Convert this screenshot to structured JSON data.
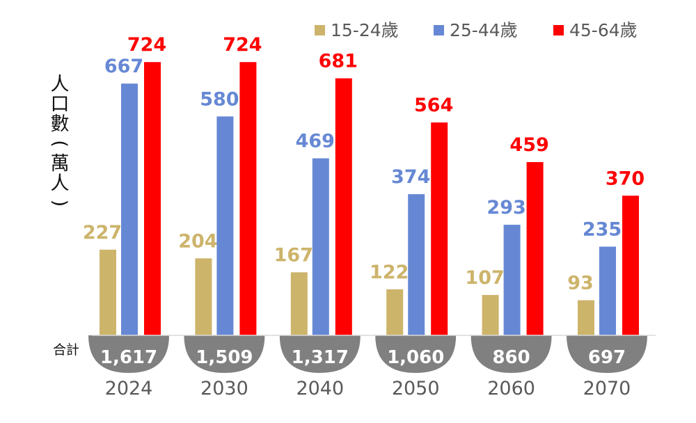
{
  "chart_data": {
    "type": "bar",
    "categories": [
      "2024",
      "2030",
      "2040",
      "2050",
      "2060",
      "2070"
    ],
    "series": [
      {
        "name": "15-24歲",
        "color": "#CDB46B",
        "values": [
          227,
          204,
          167,
          122,
          107,
          93
        ]
      },
      {
        "name": "25-44歲",
        "color": "#6688D4",
        "values": [
          667,
          580,
          469,
          374,
          293,
          235
        ]
      },
      {
        "name": "45-64歲",
        "color": "#FF0000",
        "values": [
          724,
          724,
          681,
          564,
          459,
          370
        ]
      }
    ],
    "totals": {
      "label": "合計",
      "values": [
        "1,617",
        "1,509",
        "1,317",
        "1,060",
        "860",
        "697"
      ],
      "color": "#808080"
    },
    "ylabel": "人口數(萬人)",
    "ylim": [
      0,
      800
    ],
    "legend_position": "top-right",
    "grid": false
  }
}
